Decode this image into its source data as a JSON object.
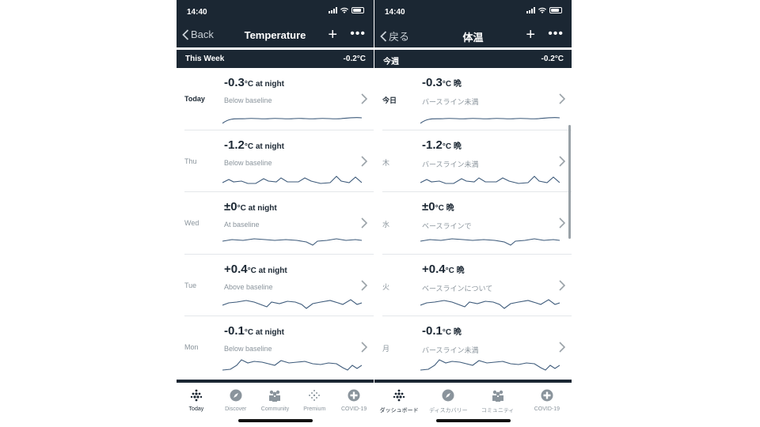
{
  "colors": {
    "header_bg": "#1b2733",
    "line": "#3d5a7a",
    "accent": "#4fb8d6",
    "muted_text": "#8a949c",
    "divider": "#e4e7ea"
  },
  "icons": {
    "back": "chevron-left-icon",
    "add": "plus-icon",
    "more": "ellipsis-icon",
    "row": "chevron-right-icon",
    "tab_today": "dots-grid-icon",
    "tab_discover": "compass-icon",
    "tab_community": "people-icon",
    "tab_premium": "dots-diamond-icon",
    "tab_covid": "plus-circle-icon"
  },
  "screens": [
    {
      "id": "en",
      "status": {
        "time": "14:40"
      },
      "nav": {
        "back_label": "Back",
        "title": "Temperature"
      },
      "week": {
        "label": "This Week",
        "value": "-0.2°C"
      },
      "rows": [
        {
          "day": "Today",
          "value": "-0.3",
          "unit": "°C at night",
          "note": "Below baseline",
          "bold": true
        },
        {
          "day": "Thu",
          "value": "-1.2",
          "unit": "°C at night",
          "note": "Below baseline"
        },
        {
          "day": "Wed",
          "value": "±0",
          "unit": "°C at night",
          "note": "At baseline"
        },
        {
          "day": "Tue",
          "value": "+0.4",
          "unit": "°C at night",
          "note": "Above baseline"
        },
        {
          "day": "Mon",
          "value": "-0.1",
          "unit": "°C at night",
          "note": "Below baseline"
        }
      ],
      "tabs": [
        {
          "label": "Today",
          "active": true
        },
        {
          "label": "Discover"
        },
        {
          "label": "Community"
        },
        {
          "label": "Premium"
        },
        {
          "label": "COVID-19"
        }
      ]
    },
    {
      "id": "jp",
      "status": {
        "time": "14:40"
      },
      "nav": {
        "back_label": "戻る",
        "title": "体温"
      },
      "week": {
        "label": "今週",
        "value": "-0.2°C"
      },
      "rows": [
        {
          "day": "今日",
          "value": "-0.3",
          "unit": "°C 晩",
          "note": "バースライン未満",
          "bold": true
        },
        {
          "day": "木",
          "value": "-1.2",
          "unit": "°C 晩",
          "note": "バースライン未満"
        },
        {
          "day": "水",
          "value": "±0",
          "unit": "°C 晩",
          "note": "ベースラインで"
        },
        {
          "day": "火",
          "value": "+0.4",
          "unit": "°C 晩",
          "note": "ベースラインについて"
        },
        {
          "day": "月",
          "value": "-0.1",
          "unit": "°C 晩",
          "note": "バースライン未満"
        }
      ],
      "tabs": [
        {
          "label": "ダッシュボード",
          "active": true
        },
        {
          "label": "ディスカバリー"
        },
        {
          "label": "コミュニティ"
        },
        {
          "label": "COVID-19"
        }
      ]
    }
  ]
}
